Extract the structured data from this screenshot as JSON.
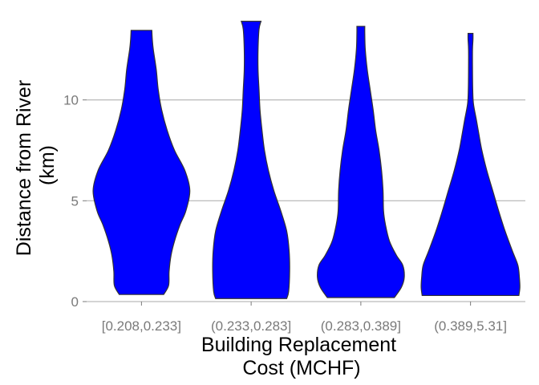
{
  "chart_data": {
    "type": "violin",
    "title": "",
    "xlabel": [
      "Building Replacement",
      "Cost (MCHF)"
    ],
    "ylabel": [
      "Distance from River",
      "(km)"
    ],
    "ylim": [
      0,
      14
    ],
    "yticks": [
      0,
      5,
      10
    ],
    "grid": "horizontal",
    "fill_color": "#0000ff",
    "outline_color": "#333333",
    "grid_color": "#a8a8a8",
    "categories": [
      "[0.208,0.233]",
      "(0.233,0.283]",
      "(0.283,0.389]",
      "(0.389,5.31]"
    ],
    "violins": [
      {
        "category": "[0.208,0.233]",
        "profile": [
          [
            0.35,
            0.45
          ],
          [
            0.8,
            0.55
          ],
          [
            1.5,
            0.56
          ],
          [
            2.3,
            0.6
          ],
          [
            3.0,
            0.67
          ],
          [
            3.8,
            0.78
          ],
          [
            4.5,
            0.9
          ],
          [
            5.5,
            0.98
          ],
          [
            6.5,
            0.88
          ],
          [
            7.5,
            0.67
          ],
          [
            8.5,
            0.52
          ],
          [
            9.5,
            0.41
          ],
          [
            10.5,
            0.34
          ],
          [
            11.5,
            0.3
          ],
          [
            12.5,
            0.24
          ],
          [
            13.0,
            0.22
          ],
          [
            13.45,
            0.21
          ]
        ]
      },
      {
        "category": "(0.233,0.283]",
        "profile": [
          [
            0.15,
            0.72
          ],
          [
            0.5,
            0.76
          ],
          [
            1.5,
            0.78
          ],
          [
            2.5,
            0.77
          ],
          [
            3.5,
            0.72
          ],
          [
            4.5,
            0.6
          ],
          [
            5.5,
            0.46
          ],
          [
            6.5,
            0.35
          ],
          [
            7.5,
            0.27
          ],
          [
            8.5,
            0.22
          ],
          [
            9.5,
            0.18
          ],
          [
            10.5,
            0.16
          ],
          [
            11.5,
            0.14
          ],
          [
            12.5,
            0.14
          ],
          [
            13.5,
            0.16
          ],
          [
            13.9,
            0.2
          ]
        ]
      },
      {
        "category": "(0.283,0.389]",
        "profile": [
          [
            0.2,
            0.68
          ],
          [
            0.7,
            0.82
          ],
          [
            1.2,
            0.88
          ],
          [
            1.8,
            0.85
          ],
          [
            2.3,
            0.72
          ],
          [
            3.0,
            0.58
          ],
          [
            3.8,
            0.5
          ],
          [
            4.5,
            0.46
          ],
          [
            5.5,
            0.45
          ],
          [
            6.5,
            0.42
          ],
          [
            7.5,
            0.37
          ],
          [
            8.5,
            0.3
          ],
          [
            9.5,
            0.25
          ],
          [
            10.5,
            0.19
          ],
          [
            11.5,
            0.13
          ],
          [
            12.5,
            0.09
          ],
          [
            13.3,
            0.08
          ],
          [
            13.65,
            0.08
          ]
        ]
      },
      {
        "category": "(0.389,5.31]",
        "profile": [
          [
            0.3,
            0.98
          ],
          [
            0.7,
            1.0
          ],
          [
            1.2,
            0.99
          ],
          [
            1.8,
            0.96
          ],
          [
            2.5,
            0.85
          ],
          [
            3.5,
            0.7
          ],
          [
            4.5,
            0.57
          ],
          [
            5.5,
            0.45
          ],
          [
            6.5,
            0.33
          ],
          [
            7.5,
            0.23
          ],
          [
            8.3,
            0.17
          ],
          [
            9.0,
            0.12
          ],
          [
            9.8,
            0.06
          ],
          [
            10.5,
            0.045
          ],
          [
            11.5,
            0.04
          ],
          [
            12.5,
            0.04
          ],
          [
            13.0,
            0.05
          ],
          [
            13.3,
            0.05
          ]
        ]
      }
    ]
  }
}
